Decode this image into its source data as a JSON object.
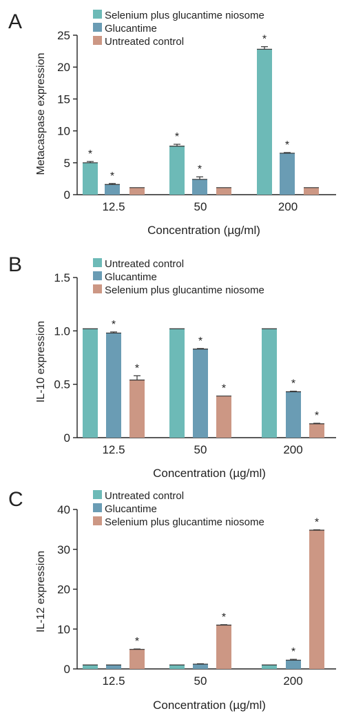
{
  "colors": {
    "teal": "#6dbab7",
    "steel": "#6a9cb4",
    "salmon": "#cc9784",
    "axis": "#222222"
  },
  "panels": [
    {
      "letter": "A",
      "ylabel": "Metacaspase expression",
      "xlabel": "Concentration (µg/ml)",
      "legend": [
        {
          "name": "Selenium plus glucantime niosome",
          "color": "teal"
        },
        {
          "name": "Glucantime",
          "color": "steel"
        },
        {
          "name": "Untreated control",
          "color": "salmon"
        }
      ]
    },
    {
      "letter": "B",
      "ylabel": "IL-10 expression",
      "xlabel": "Concentration (µg/ml)",
      "legend": [
        {
          "name": "Untreated control",
          "color": "teal"
        },
        {
          "name": "Glucantime",
          "color": "steel"
        },
        {
          "name": "Selenium plus glucantime niosome",
          "color": "salmon"
        }
      ]
    },
    {
      "letter": "C",
      "ylabel": "IL-12 expression",
      "xlabel": "Concentration (µg/ml)",
      "legend": [
        {
          "name": "Untreated control",
          "color": "teal"
        },
        {
          "name": "Glucantime",
          "color": "steel"
        },
        {
          "name": "Selenium plus glucantime niosome",
          "color": "salmon"
        }
      ]
    }
  ],
  "chart_data": [
    {
      "type": "bar",
      "categories": [
        "12.5",
        "50",
        "200"
      ],
      "ylim": [
        0,
        25
      ],
      "yticks": [
        "0",
        "5",
        "10",
        "15",
        "20",
        "25"
      ],
      "series": [
        {
          "name": "Selenium plus glucantime niosome",
          "values": [
            5.0,
            7.6,
            22.8
          ],
          "errors": [
            0.2,
            0.3,
            0.4
          ],
          "significant": [
            true,
            true,
            true
          ]
        },
        {
          "name": "Glucantime",
          "values": [
            1.6,
            2.4,
            6.5
          ],
          "errors": [
            0.15,
            0.4,
            0.1
          ],
          "significant": [
            true,
            true,
            true
          ]
        },
        {
          "name": "Untreated control",
          "values": [
            1.1,
            1.1,
            1.1
          ],
          "errors": [
            0,
            0,
            0
          ],
          "significant": [
            false,
            false,
            false
          ]
        }
      ],
      "annotation": "*"
    },
    {
      "type": "bar",
      "categories": [
        "12.5",
        "50",
        "200"
      ],
      "ylim": [
        0,
        1.5
      ],
      "yticks": [
        "0",
        "0.5",
        "1.0",
        "1.5"
      ],
      "series": [
        {
          "name": "Untreated control",
          "values": [
            1.02,
            1.02,
            1.02
          ],
          "errors": [
            0,
            0,
            0
          ],
          "significant": [
            false,
            false,
            false
          ]
        },
        {
          "name": "Glucantime",
          "values": [
            0.98,
            0.83,
            0.43
          ],
          "errors": [
            0.01,
            0.005,
            0.005
          ],
          "significant": [
            true,
            true,
            true
          ]
        },
        {
          "name": "Selenium plus glucantime niosome",
          "values": [
            0.54,
            0.39,
            0.13
          ],
          "errors": [
            0.04,
            0,
            0.005
          ],
          "significant": [
            true,
            true,
            true
          ]
        }
      ],
      "annotation": "*"
    },
    {
      "type": "bar",
      "categories": [
        "12.5",
        "50",
        "200"
      ],
      "ylim": [
        0,
        40
      ],
      "yticks": [
        "0",
        "10",
        "20",
        "30",
        "40"
      ],
      "series": [
        {
          "name": "Untreated control",
          "values": [
            1.0,
            1.0,
            1.0
          ],
          "errors": [
            0,
            0,
            0
          ],
          "significant": [
            false,
            false,
            false
          ]
        },
        {
          "name": "Glucantime",
          "values": [
            1.0,
            1.2,
            2.2
          ],
          "errors": [
            0,
            0.1,
            0.2
          ],
          "significant": [
            false,
            false,
            true
          ]
        },
        {
          "name": "Selenium plus glucantime niosome",
          "values": [
            4.9,
            11.0,
            34.8
          ],
          "errors": [
            0.1,
            0.1,
            0.1
          ],
          "significant": [
            true,
            true,
            true
          ]
        }
      ],
      "annotation": "*"
    }
  ]
}
